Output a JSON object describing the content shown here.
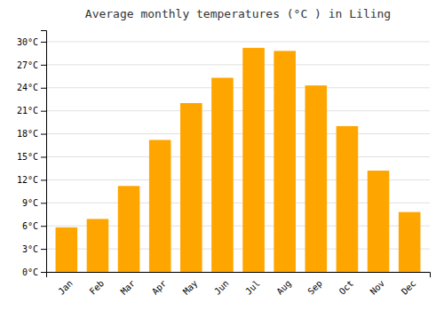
{
  "chart_data": {
    "type": "bar",
    "title": "Average monthly temperatures (°C ) in Liling",
    "categories": [
      "Jan",
      "Feb",
      "Mar",
      "Apr",
      "May",
      "Jun",
      "Jul",
      "Aug",
      "Sep",
      "Oct",
      "Nov",
      "Dec"
    ],
    "values": [
      5.8,
      6.9,
      11.2,
      17.2,
      22.0,
      25.3,
      29.2,
      28.8,
      24.3,
      19.0,
      13.2,
      7.8
    ],
    "color": "#FFA500",
    "ylim": [
      0,
      31.5
    ],
    "yticks": [
      {
        "value": 0,
        "label": "0°C"
      },
      {
        "value": 3,
        "label": "3°C"
      },
      {
        "value": 6,
        "label": "6°C"
      },
      {
        "value": 9,
        "label": "9°C"
      },
      {
        "value": 12,
        "label": "12°C"
      },
      {
        "value": 15,
        "label": "15°C"
      },
      {
        "value": 18,
        "label": "18°C"
      },
      {
        "value": 21,
        "label": "21°C"
      },
      {
        "value": 24,
        "label": "24°C"
      },
      {
        "value": 27,
        "label": "27°C"
      },
      {
        "value": 30,
        "label": "30°C"
      }
    ],
    "grid": true
  }
}
